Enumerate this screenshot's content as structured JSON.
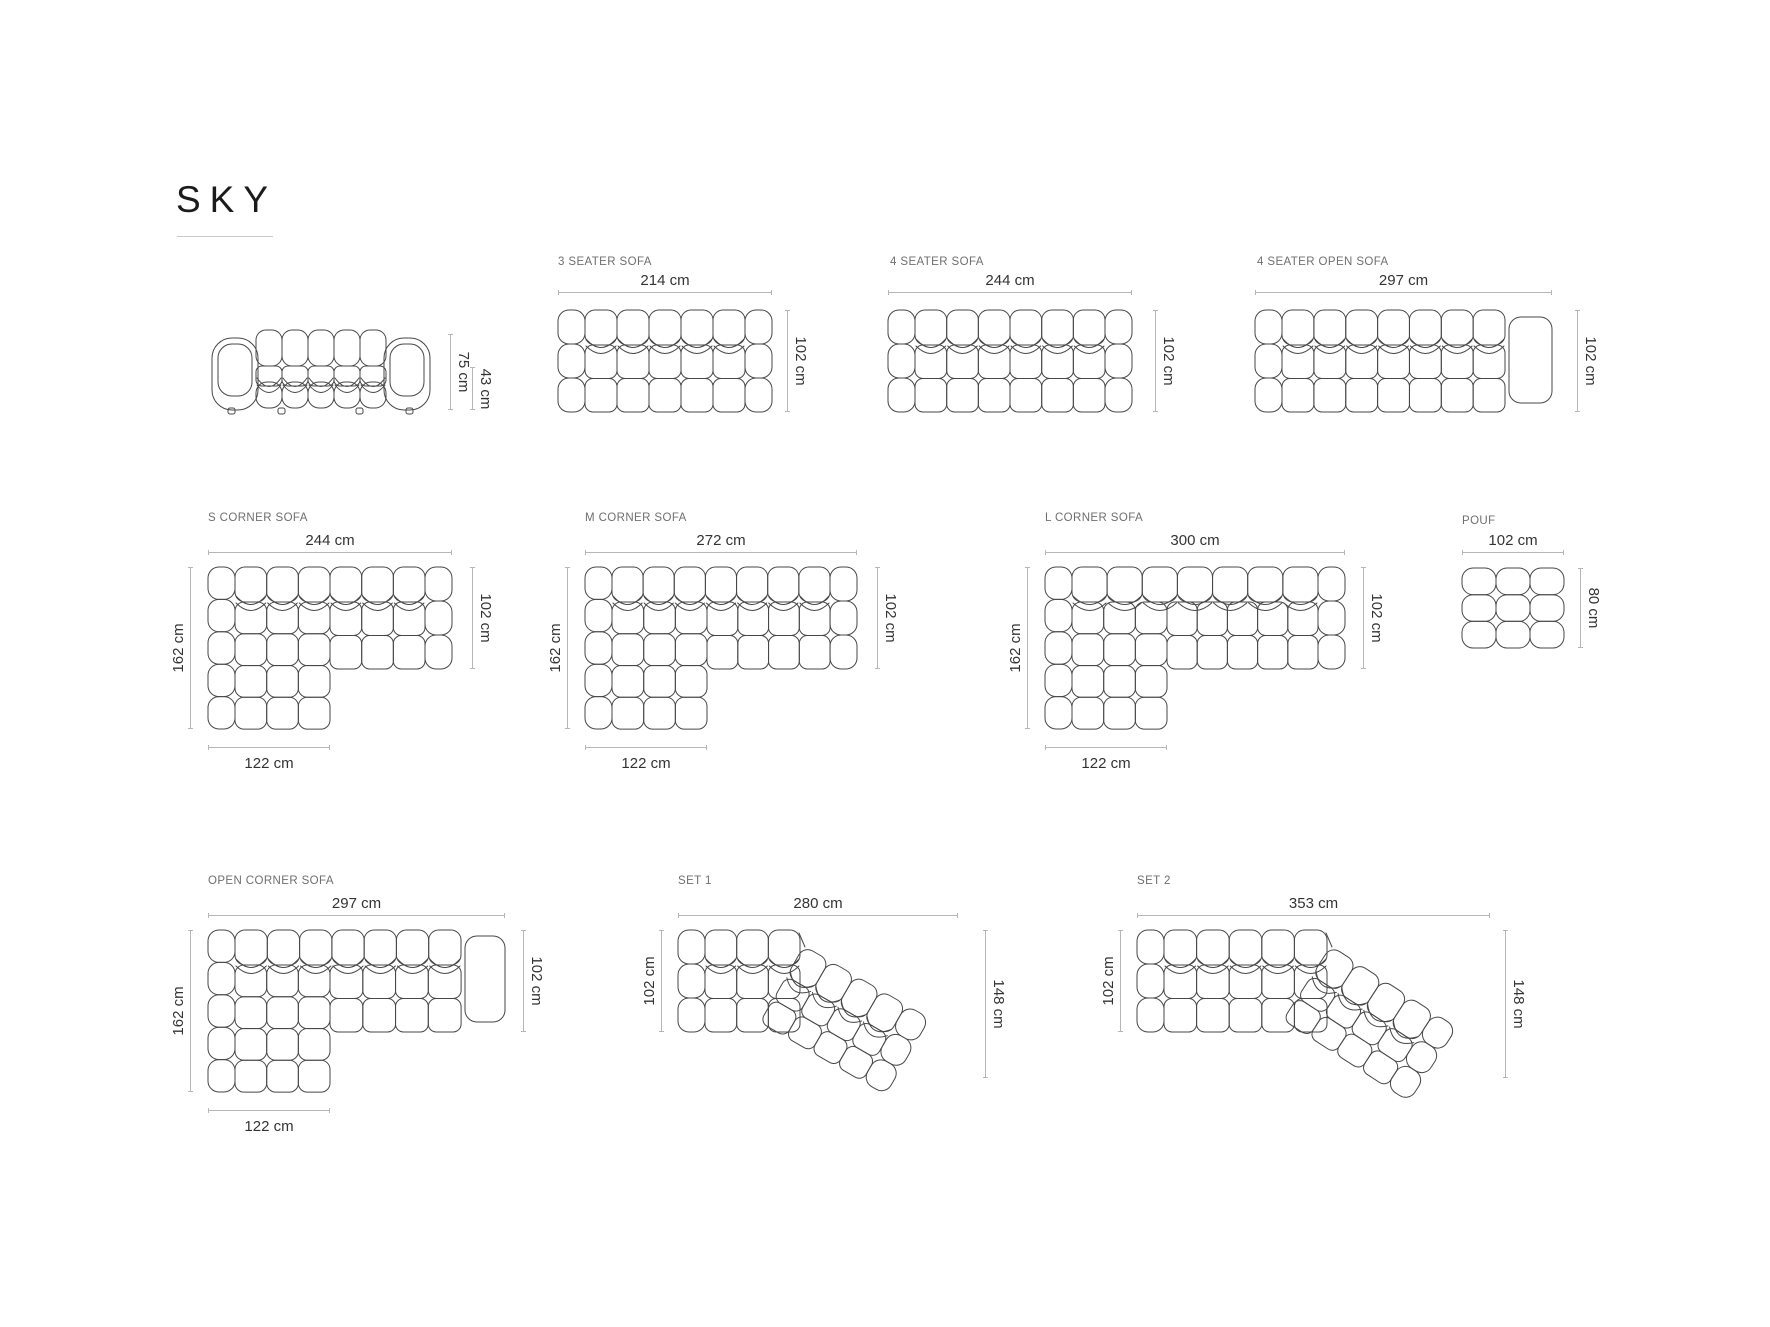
{
  "title": "SKY",
  "items": [
    {
      "id": "front-view",
      "dim_height": "75 cm",
      "dim_seat_height": "43 cm"
    },
    {
      "id": "3-seater-sofa",
      "label": "3 SEATER SOFA",
      "dim_top": "214 cm",
      "dim_right": "102 cm"
    },
    {
      "id": "4-seater-sofa",
      "label": "4 SEATER SOFA",
      "dim_top": "244 cm",
      "dim_right": "102 cm"
    },
    {
      "id": "4-seater-open-sofa",
      "label": "4 SEATER OPEN SOFA",
      "dim_top": "297 cm",
      "dim_right": "102 cm"
    },
    {
      "id": "s-corner-sofa",
      "label": "S CORNER SOFA",
      "dim_top": "244 cm",
      "dim_left": "162 cm",
      "dim_right": "102 cm",
      "dim_bottom": "122 cm"
    },
    {
      "id": "m-corner-sofa",
      "label": "M CORNER SOFA",
      "dim_top": "272 cm",
      "dim_left": "162 cm",
      "dim_right": "102 cm",
      "dim_bottom": "122 cm"
    },
    {
      "id": "l-corner-sofa",
      "label": "L CORNER SOFA",
      "dim_top": "300 cm",
      "dim_left": "162 cm",
      "dim_right": "102 cm",
      "dim_bottom": "122 cm"
    },
    {
      "id": "pouf",
      "label": "POUF",
      "dim_top": "102 cm",
      "dim_right": "80 cm"
    },
    {
      "id": "open-corner-sofa",
      "label": "OPEN CORNER SOFA",
      "dim_top": "297 cm",
      "dim_left": "162 cm",
      "dim_right": "102 cm",
      "dim_bottom": "122 cm"
    },
    {
      "id": "set-1",
      "label": "SET 1",
      "dim_top": "280 cm",
      "dim_left": "102 cm",
      "dim_right": "148 cm"
    },
    {
      "id": "set-2",
      "label": "SET 2",
      "dim_top": "353 cm",
      "dim_left": "102 cm",
      "dim_right": "148 cm"
    }
  ]
}
